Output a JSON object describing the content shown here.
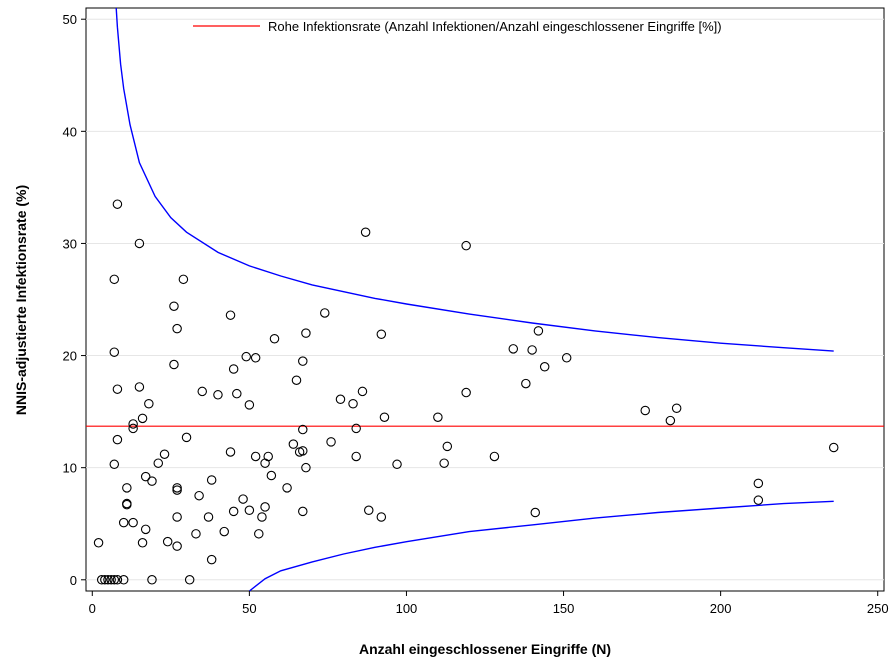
{
  "chart_data": {
    "type": "scatter",
    "xlabel": "Anzahl eingeschlossener Eingriffe (N)",
    "ylabel": "NNIS-adjustierte Infektionsrate (%)",
    "xlim": [
      -2,
      252
    ],
    "ylim": [
      -1,
      51
    ],
    "xticks": [
      0,
      50,
      100,
      150,
      200,
      250
    ],
    "yticks": [
      0,
      10,
      20,
      30,
      40,
      50
    ],
    "grid": "horizontal",
    "legend_position": "top-right",
    "reference_line": {
      "name": "Rohe Infektionsrate (Anzahl Infektionen/Anzahl eingeschlossener Eingriffe [%])",
      "y": 13.7,
      "color": "#ff0000"
    },
    "control_limit_color": "#0000ff",
    "control_limits": {
      "upper": [
        [
          7.6,
          51
        ],
        [
          8,
          49.3
        ],
        [
          9,
          46
        ],
        [
          10,
          43.8
        ],
        [
          12,
          40.6
        ],
        [
          15,
          37.2
        ],
        [
          20,
          34.2
        ],
        [
          25,
          32.3
        ],
        [
          30,
          31.0
        ],
        [
          40,
          29.2
        ],
        [
          50,
          28.0
        ],
        [
          60,
          27.1
        ],
        [
          70,
          26.3
        ],
        [
          80,
          25.7
        ],
        [
          90,
          25.1
        ],
        [
          100,
          24.6
        ],
        [
          120,
          23.7
        ],
        [
          140,
          22.9
        ],
        [
          160,
          22.2
        ],
        [
          180,
          21.6
        ],
        [
          200,
          21.1
        ],
        [
          220,
          20.7
        ],
        [
          236,
          20.4
        ]
      ],
      "lower": [
        [
          50,
          -1
        ],
        [
          55,
          0.1
        ],
        [
          60,
          0.8
        ],
        [
          70,
          1.6
        ],
        [
          80,
          2.3
        ],
        [
          90,
          2.9
        ],
        [
          100,
          3.4
        ],
        [
          120,
          4.3
        ],
        [
          140,
          4.9
        ],
        [
          160,
          5.5
        ],
        [
          180,
          6.0
        ],
        [
          200,
          6.4
        ],
        [
          220,
          6.8
        ],
        [
          236,
          7.0
        ]
      ]
    },
    "points": [
      [
        2,
        3.3
      ],
      [
        3,
        0
      ],
      [
        4,
        0
      ],
      [
        5,
        0
      ],
      [
        6,
        0
      ],
      [
        7,
        0
      ],
      [
        8,
        0
      ],
      [
        10,
        0
      ],
      [
        19,
        0
      ],
      [
        31,
        0
      ],
      [
        8,
        33.5
      ],
      [
        15,
        30
      ],
      [
        7,
        26.8
      ],
      [
        29,
        26.8
      ],
      [
        26,
        24.4
      ],
      [
        27,
        22.4
      ],
      [
        7,
        20.3
      ],
      [
        26,
        19.2
      ],
      [
        8,
        17
      ],
      [
        15,
        17.2
      ],
      [
        18,
        15.7
      ],
      [
        16,
        14.4
      ],
      [
        13,
        13.5
      ],
      [
        13,
        13.9
      ],
      [
        8,
        12.5
      ],
      [
        7,
        10.3
      ],
      [
        11,
        8.2
      ],
      [
        11,
        6.8
      ],
      [
        11,
        6.7
      ],
      [
        10,
        5.1
      ],
      [
        13,
        5.1
      ],
      [
        16,
        3.3
      ],
      [
        17,
        4.5
      ],
      [
        17,
        9.2
      ],
      [
        19,
        8.8
      ],
      [
        21,
        10.4
      ],
      [
        23,
        11.2
      ],
      [
        24,
        3.4
      ],
      [
        27,
        3
      ],
      [
        27,
        5.6
      ],
      [
        27,
        8
      ],
      [
        27,
        8.2
      ],
      [
        30,
        12.7
      ],
      [
        33,
        4.1
      ],
      [
        34,
        7.5
      ],
      [
        35,
        16.8
      ],
      [
        37,
        5.6
      ],
      [
        38,
        8.9
      ],
      [
        38,
        1.8
      ],
      [
        40,
        16.5
      ],
      [
        42,
        4.3
      ],
      [
        44,
        23.6
      ],
      [
        44,
        11.4
      ],
      [
        45,
        18.8
      ],
      [
        45,
        6.1
      ],
      [
        46,
        16.6
      ],
      [
        48,
        7.2
      ],
      [
        49,
        19.9
      ],
      [
        50,
        15.6
      ],
      [
        50,
        6.2
      ],
      [
        52,
        19.8
      ],
      [
        52,
        11
      ],
      [
        53,
        4.1
      ],
      [
        54,
        5.6
      ],
      [
        55,
        10.4
      ],
      [
        55,
        6.5
      ],
      [
        56,
        11
      ],
      [
        57,
        9.3
      ],
      [
        58,
        21.5
      ],
      [
        62,
        8.2
      ],
      [
        64,
        12.1
      ],
      [
        65,
        17.8
      ],
      [
        66,
        11.4
      ],
      [
        67,
        11.5
      ],
      [
        67,
        13.4
      ],
      [
        67,
        19.5
      ],
      [
        67,
        6.1
      ],
      [
        68,
        22
      ],
      [
        68,
        10
      ],
      [
        74,
        23.8
      ],
      [
        76,
        12.3
      ],
      [
        79,
        16.1
      ],
      [
        83,
        15.7
      ],
      [
        84,
        13.5
      ],
      [
        84,
        11
      ],
      [
        86,
        16.8
      ],
      [
        87,
        31
      ],
      [
        88,
        6.2
      ],
      [
        92,
        21.9
      ],
      [
        92,
        5.6
      ],
      [
        93,
        14.5
      ],
      [
        97,
        10.3
      ],
      [
        110,
        14.5
      ],
      [
        112,
        10.4
      ],
      [
        113,
        11.9
      ],
      [
        119,
        29.8
      ],
      [
        119,
        16.7
      ],
      [
        128,
        11
      ],
      [
        134,
        20.6
      ],
      [
        138,
        17.5
      ],
      [
        140,
        20.5
      ],
      [
        141,
        6
      ],
      [
        142,
        22.2
      ],
      [
        144,
        19
      ],
      [
        151,
        19.8
      ],
      [
        176,
        15.1
      ],
      [
        184,
        14.2
      ],
      [
        186,
        15.3
      ],
      [
        212,
        8.6
      ],
      [
        212,
        7.1
      ],
      [
        236,
        11.8
      ]
    ]
  }
}
